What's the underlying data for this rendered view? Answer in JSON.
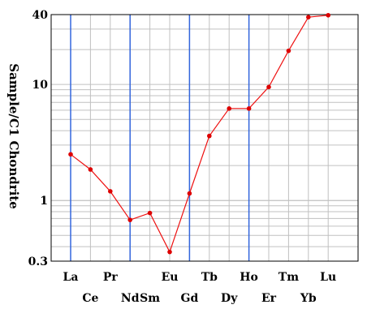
{
  "chart_data": {
    "type": "line",
    "title": "",
    "xlabel": "",
    "ylabel": "Sample/C1 Chondrite",
    "yscale": "log",
    "ylim": [
      0.3,
      40
    ],
    "yticks": [
      0.3,
      1,
      10,
      40
    ],
    "ytick_labels": [
      "0.3",
      "1",
      "10",
      "40"
    ],
    "categories": [
      "La",
      "Ce",
      "Pr",
      "Nd",
      "Sm",
      "Eu",
      "Gd",
      "Tb",
      "Dy",
      "Ho",
      "Er",
      "Tm",
      "Yb",
      "Lu"
    ],
    "category_rows": [
      "top",
      "bottom",
      "top",
      "bottom",
      "bottom",
      "top",
      "bottom",
      "top",
      "bottom",
      "top",
      "bottom",
      "top",
      "bottom",
      "top"
    ],
    "highlight_categories": [
      "La",
      "Nd",
      "Gd",
      "Ho"
    ],
    "series": [
      {
        "values": [
          2.5,
          1.85,
          1.2,
          0.68,
          0.78,
          0.36,
          1.15,
          3.6,
          6.2,
          6.2,
          9.5,
          19.5,
          38,
          39.5
        ]
      }
    ],
    "grid": true,
    "colors": {
      "line": "#ee1111",
      "marker": "#dd0000",
      "highlight": "#3366dd",
      "grid": "#c0c0c0",
      "frame": "#000000"
    }
  }
}
